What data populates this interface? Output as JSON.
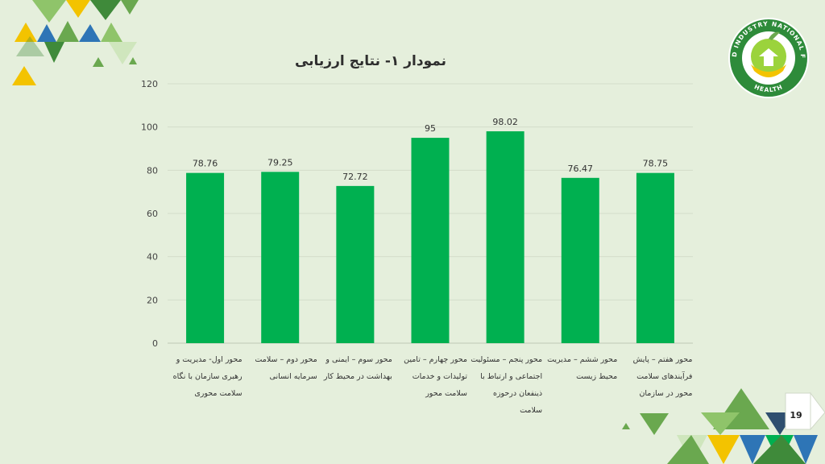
{
  "slide": {
    "page_number": "19"
  },
  "logo": {
    "text_top": "INDUSTRY",
    "text_right": "NATIONAL FESTIVAL",
    "text_bottom": "HEALTH",
    "text_left": "ORIENTED"
  },
  "colors": {
    "bar": "#00b050",
    "background": "#e5efdc",
    "grid": "#d3ddca"
  },
  "chart_data": {
    "type": "bar",
    "title": "نمودار ۱- نتایج ارزیابی",
    "categories": [
      "محور اول- مدیریت و رهبری سازمان با نگاه سلامت محوری",
      "محور دوم – سلامت سرمایه انسانی",
      "محور سوم – ایمنی و بهداشت در محیط کار",
      "محور چهارم – تامین تولیدات و خدمات سلامت محور",
      "محور پنجم – مسئولیت اجتماعی و ارتباط با ذینفعان درحوزه سلامت",
      "محور ششم – مدیریت محیط زیست",
      "محور هفتم – پایش فرآیندهای سلامت محور در سازمان"
    ],
    "values": [
      78.76,
      79.25,
      72.72,
      95,
      98.02,
      76.47,
      78.75
    ],
    "value_labels": [
      "78.76",
      "79.25",
      "72.72",
      "95",
      "98.02",
      "76.47",
      "78.75"
    ],
    "ylim": [
      0,
      120
    ],
    "yticks": [
      0,
      20,
      40,
      60,
      80,
      100,
      120
    ],
    "grid": true,
    "legend": "none"
  }
}
